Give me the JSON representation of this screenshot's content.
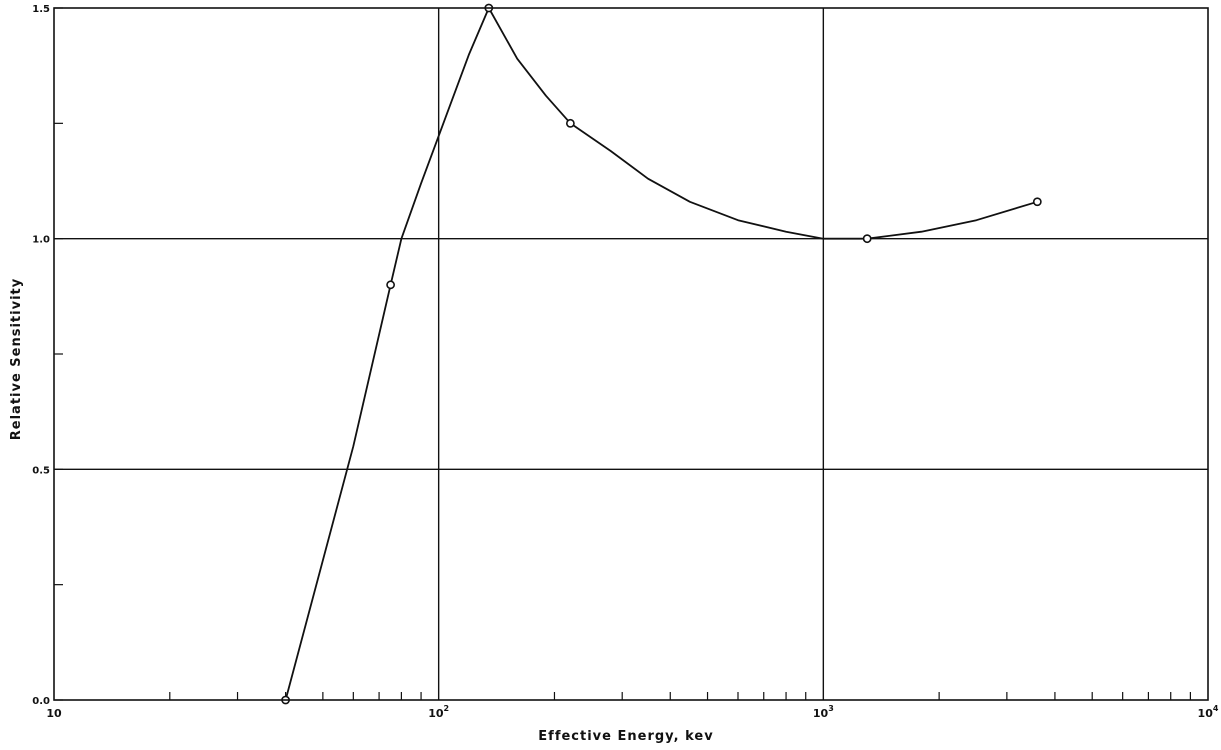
{
  "chart_data": {
    "type": "line",
    "xlabel": "Effective Energy, kev",
    "ylabel": "Relative Sensitivity",
    "xscale": "log",
    "xlim": [
      10,
      10000
    ],
    "ylim": [
      0.0,
      1.5
    ],
    "grid": true,
    "x_major_ticks": [
      {
        "value": 10,
        "base": "10",
        "exp": ""
      },
      {
        "value": 100,
        "base": "10",
        "exp": "2"
      },
      {
        "value": 1000,
        "base": "10",
        "exp": "3"
      },
      {
        "value": 10000,
        "base": "10",
        "exp": "4"
      }
    ],
    "y_ticks": [
      {
        "value": 0.0,
        "label": "0.0"
      },
      {
        "value": 0.25,
        "label": ""
      },
      {
        "value": 0.5,
        "label": "0.5"
      },
      {
        "value": 0.75,
        "label": ""
      },
      {
        "value": 1.0,
        "label": "1.0"
      },
      {
        "value": 1.25,
        "label": ""
      },
      {
        "value": 1.5,
        "label": "1.5"
      }
    ],
    "y_gridlines": [
      0.5,
      1.0
    ],
    "series": [
      {
        "markers": "open-circle",
        "color": "#111111",
        "points": [
          {
            "x": 40,
            "y": 0.0
          },
          {
            "x": 75,
            "y": 0.9
          },
          {
            "x": 135,
            "y": 1.5
          },
          {
            "x": 220,
            "y": 1.25
          },
          {
            "x": 1300,
            "y": 1.0
          },
          {
            "x": 3600,
            "y": 1.08
          }
        ],
        "curve": [
          {
            "x": 40,
            "y": 0.0
          },
          {
            "x": 60,
            "y": 0.55
          },
          {
            "x": 75,
            "y": 0.9
          },
          {
            "x": 80,
            "y": 1.0
          },
          {
            "x": 90,
            "y": 1.12
          },
          {
            "x": 105,
            "y": 1.27
          },
          {
            "x": 120,
            "y": 1.4
          },
          {
            "x": 135,
            "y": 1.5
          },
          {
            "x": 160,
            "y": 1.39
          },
          {
            "x": 190,
            "y": 1.31
          },
          {
            "x": 220,
            "y": 1.25
          },
          {
            "x": 280,
            "y": 1.19
          },
          {
            "x": 350,
            "y": 1.13
          },
          {
            "x": 450,
            "y": 1.08
          },
          {
            "x": 600,
            "y": 1.04
          },
          {
            "x": 800,
            "y": 1.015
          },
          {
            "x": 1000,
            "y": 1.0
          },
          {
            "x": 1300,
            "y": 1.0
          },
          {
            "x": 1800,
            "y": 1.015
          },
          {
            "x": 2500,
            "y": 1.04
          },
          {
            "x": 3600,
            "y": 1.08
          }
        ]
      }
    ]
  }
}
